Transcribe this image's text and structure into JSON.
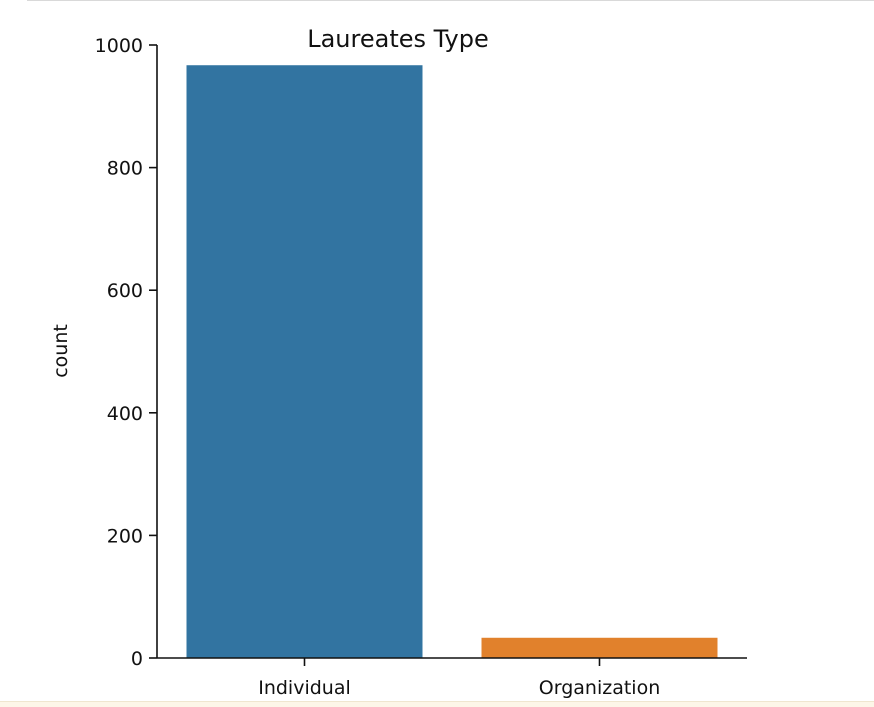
{
  "chart_data": {
    "type": "bar",
    "title": "Laureates Type",
    "xlabel": "",
    "ylabel": "count",
    "categories": [
      "Individual",
      "Organization"
    ],
    "values": [
      967,
      33
    ],
    "colors": [
      "#3274a1",
      "#e1812c"
    ],
    "ylim": [
      0,
      1000
    ],
    "yticks": [
      0,
      200,
      400,
      600,
      800,
      1000
    ],
    "grid": false,
    "legend": "none"
  }
}
